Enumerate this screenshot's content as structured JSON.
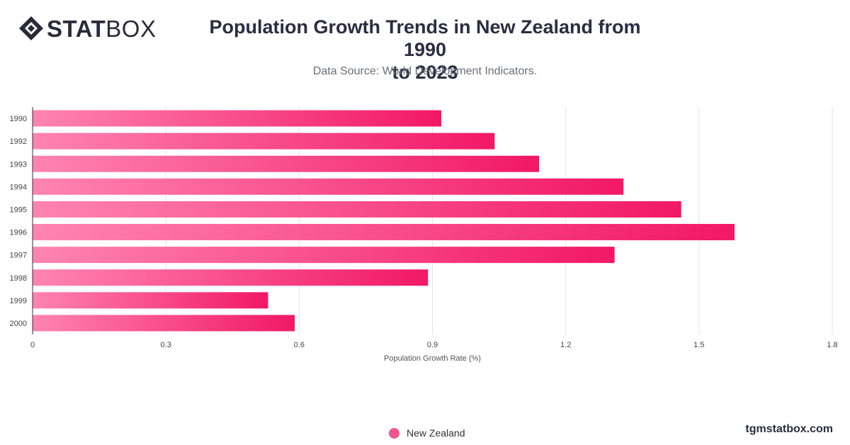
{
  "brand": {
    "logo_bold": "STAT",
    "logo_light": "BOX",
    "watermark": "tgmstatbox.com"
  },
  "colors": {
    "bar_start": "#ff84b0",
    "bar_end": "#f21865",
    "grid": "#e3e3e3",
    "axis": "#333333"
  },
  "chart_data": {
    "type": "bar",
    "orientation": "horizontal",
    "title_line1": "Population Growth Trends in New Zealand from 1990",
    "title_line2": "to 2023",
    "subtitle": "Data Source: World Development Indicators.",
    "xlabel": "Population Growth Rate (%)",
    "ylabel": "",
    "categories": [
      "1990",
      "1992",
      "1993",
      "1994",
      "1995",
      "1996",
      "1997",
      "1998",
      "1999",
      "2000"
    ],
    "series": [
      {
        "name": "New Zealand",
        "values": [
          0.92,
          1.04,
          1.14,
          1.33,
          1.46,
          1.58,
          1.31,
          0.89,
          0.53,
          0.59
        ]
      }
    ],
    "xlim": [
      0,
      1.8
    ],
    "xticks": [
      "0",
      "0.3",
      "0.6",
      "0.9",
      "1.2",
      "1.5",
      "1.8"
    ],
    "grid": true,
    "legend_position": "bottom-center"
  }
}
